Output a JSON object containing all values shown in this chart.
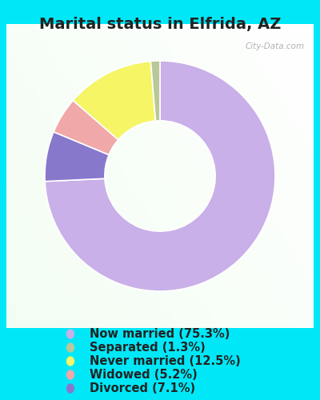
{
  "title": "Marital status in Elfrida, AZ",
  "slices": [
    75.3,
    7.1,
    5.2,
    12.5,
    1.3
  ],
  "colors": [
    "#c9b0e8",
    "#8878cc",
    "#f0a8a8",
    "#f5f566",
    "#b8c898"
  ],
  "legend_labels": [
    "Now married (75.3%)",
    "Separated (1.3%)",
    "Never married (12.5%)",
    "Widowed (5.2%)",
    "Divorced (7.1%)"
  ],
  "legend_colors": [
    "#c9b0e8",
    "#b8c898",
    "#f5f566",
    "#f0a8a8",
    "#8878cc"
  ],
  "bg_outer": "#00e8f8",
  "watermark": "City-Data.com",
  "title_fontsize": 14,
  "legend_fontsize": 10.5,
  "startangle": 90,
  "donut_width": 0.52
}
